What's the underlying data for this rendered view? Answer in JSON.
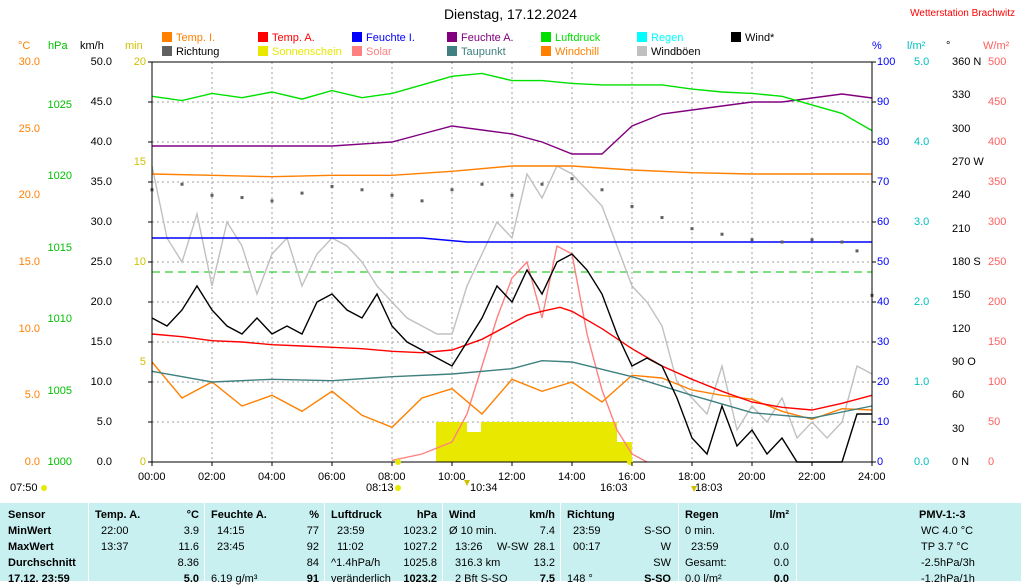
{
  "title": "Dienstag, 17.12.2024",
  "station": "Wetterstation Brachwitz",
  "legend": [
    {
      "label": "Temp. I.",
      "color": "#ff8000"
    },
    {
      "label": "Temp. A.",
      "color": "#ff0000"
    },
    {
      "label": "Feuchte I.",
      "color": "#0000ff"
    },
    {
      "label": "Feuchte A.",
      "color": "#800080"
    },
    {
      "label": "Luftdruck",
      "color": "#00e000"
    },
    {
      "label": "Regen",
      "color": "#00ffff"
    },
    {
      "label": "Wind*",
      "color": "#000000"
    },
    {
      "label": "Richtung",
      "color": "#606060"
    },
    {
      "label": "Sonnenschein",
      "color": "#e8e800"
    },
    {
      "label": "Solar",
      "color": "#ff8080"
    },
    {
      "label": "Taupunkt",
      "color": "#408080"
    },
    {
      "label": "Windchill",
      "color": "#ff8000"
    },
    {
      "label": "Windböen",
      "color": "#c0c0c0"
    }
  ],
  "axes_titles": {
    "temp": "°C",
    "press": "hPa",
    "wind": "km/h",
    "sun": "min",
    "hum": "%",
    "rain": "l/m²",
    "dir": "°",
    "solar": "W/m²"
  },
  "axes": {
    "temp": [
      "0.0",
      "5.0",
      "10.0",
      "15.0",
      "20.0",
      "25.0",
      "30.0"
    ],
    "press": [
      "1000",
      "1005",
      "1010",
      "1015",
      "1020",
      "1025"
    ],
    "wind": [
      "0.0",
      "5.0",
      "10.0",
      "15.0",
      "20.0",
      "25.0",
      "30.0",
      "35.0",
      "40.0",
      "45.0",
      "50.0"
    ],
    "sun": [
      "0",
      "5",
      "10",
      "15",
      "20"
    ],
    "hum": [
      "0",
      "10",
      "20",
      "30",
      "40",
      "50",
      "60",
      "70",
      "80",
      "90",
      "100"
    ],
    "rain": [
      "0.0",
      "1.0",
      "2.0",
      "3.0",
      "4.0",
      "5.0"
    ],
    "dir": [
      "0 N",
      "30",
      "60",
      "90 O",
      "120",
      "150",
      "180 S",
      "210",
      "240",
      "270 W",
      "300",
      "330",
      "360 N"
    ],
    "solar": [
      "0",
      "50",
      "100",
      "150",
      "200",
      "250",
      "300",
      "350",
      "400",
      "450",
      "500"
    ]
  },
  "x_ticks": [
    "00:00",
    "02:00",
    "04:00",
    "06:00",
    "08:00",
    "10:00",
    "12:00",
    "14:00",
    "16:00",
    "18:00",
    "20:00",
    "22:00",
    "24:00"
  ],
  "annotations": {
    "sunrise_left": "07:50",
    "sunrise": "08:13",
    "solar_max": "10:34",
    "sunset": "16:03",
    "dusk": "18:03"
  },
  "chart_data": {
    "type": "line",
    "x_unit": "hours",
    "x_range": [
      0,
      24
    ],
    "y_axes": {
      "temperature_C": [
        0,
        30
      ],
      "pressure_hPa": [
        1000,
        1028
      ],
      "wind_kmh": [
        0,
        50
      ],
      "sunshine_min": [
        0,
        20
      ],
      "humidity_pct": [
        0,
        100
      ],
      "rain_lm2": [
        0,
        5
      ],
      "direction_deg": [
        0,
        360
      ],
      "solar_wm2": [
        0,
        500
      ]
    },
    "series": [
      {
        "name": "Temp. I.",
        "axis": "temperature_C",
        "x": [
          0,
          2,
          4,
          6,
          8,
          10,
          12,
          14,
          16,
          18,
          20,
          22,
          24
        ],
        "values": [
          21.6,
          21.5,
          21.4,
          21.5,
          21.5,
          21.8,
          22.2,
          22.2,
          21.9,
          21.7,
          21.6,
          21.6,
          21.6
        ]
      },
      {
        "name": "Temp. A.",
        "axis": "temperature_C",
        "x": [
          0,
          1,
          2,
          3,
          4,
          5,
          6,
          7,
          8,
          9,
          10,
          11,
          12,
          12.5,
          13,
          13.6,
          14,
          15,
          16,
          17,
          18,
          19,
          20,
          21,
          22,
          23,
          24
        ],
        "values": [
          9.6,
          9.4,
          9.1,
          9.0,
          8.8,
          8.7,
          8.6,
          8.5,
          8.3,
          8.2,
          8.4,
          9.2,
          10.4,
          11.0,
          11.3,
          11.6,
          11.3,
          10.0,
          8.5,
          7.2,
          6.2,
          5.3,
          4.5,
          4.1,
          3.9,
          4.4,
          5.0
        ]
      },
      {
        "name": "Feuchte I.",
        "axis": "humidity_pct",
        "x": [
          0,
          3,
          6,
          9,
          10.5,
          11,
          14,
          16.5,
          18,
          21,
          24
        ],
        "values": [
          56,
          56,
          56,
          56,
          55,
          55,
          55,
          55,
          55,
          55,
          55
        ]
      },
      {
        "name": "Feuchte A.",
        "axis": "humidity_pct",
        "x": [
          0,
          2,
          4,
          6,
          8,
          9,
          10,
          11,
          12,
          13,
          14,
          15,
          16,
          17,
          18,
          19,
          20,
          21,
          22,
          23,
          24
        ],
        "values": [
          79,
          79,
          79,
          79,
          80,
          82,
          84,
          83,
          82,
          80,
          77,
          77,
          84,
          87,
          88,
          89,
          90,
          90,
          91,
          92,
          91
        ]
      },
      {
        "name": "Luftdruck",
        "axis": "pressure_hPa",
        "x": [
          0,
          1,
          2,
          3,
          4,
          5,
          6,
          7,
          8,
          9,
          10,
          11,
          12,
          13,
          14,
          15,
          16,
          17,
          18,
          19,
          20,
          21,
          22,
          23,
          24
        ],
        "values": [
          1025.6,
          1025.3,
          1025.8,
          1025.5,
          1025.9,
          1025.4,
          1026.0,
          1025.5,
          1025.8,
          1026.4,
          1027.0,
          1027.2,
          1026.7,
          1026.7,
          1026.5,
          1026.4,
          1026.4,
          1026.4,
          1026.1,
          1025.9,
          1025.8,
          1025.6,
          1025.0,
          1024.4,
          1023.2
        ]
      },
      {
        "name": "Taupunkt",
        "axis": "temperature_C",
        "x": [
          0,
          2,
          4,
          6,
          8,
          10,
          12,
          13,
          14,
          16,
          18,
          20,
          22,
          24
        ],
        "values": [
          6.8,
          6.0,
          6.2,
          6.1,
          6.4,
          6.6,
          7.0,
          7.6,
          7.5,
          6.4,
          5.0,
          3.7,
          3.3,
          4.2
        ]
      },
      {
        "name": "Windchill",
        "axis": "temperature_C",
        "x": [
          0,
          1,
          2,
          3,
          4,
          5,
          6,
          7,
          8,
          9,
          10,
          11,
          12,
          13,
          14,
          15,
          16,
          17,
          18,
          19,
          20,
          21,
          22,
          23,
          24
        ],
        "values": [
          7.5,
          4.8,
          6.0,
          4.2,
          5.0,
          3.8,
          5.3,
          3.5,
          2.6,
          4.8,
          5.5,
          3.6,
          6.2,
          5.3,
          6.0,
          4.5,
          6.5,
          6.3,
          5.4,
          5.0,
          4.7,
          3.8,
          3.2,
          4.0,
          3.9
        ]
      },
      {
        "name": "Wind*",
        "axis": "wind_kmh",
        "x": [
          0,
          0.5,
          1,
          1.5,
          2,
          2.5,
          3,
          3.5,
          4,
          4.5,
          5,
          5.5,
          6,
          6.5,
          7,
          7.5,
          8,
          8.5,
          9,
          9.5,
          10,
          10.5,
          11,
          11.5,
          12,
          12.5,
          13,
          13.5,
          14,
          14.5,
          15,
          15.5,
          16,
          16.5,
          17,
          17.5,
          18,
          18.5,
          19,
          19.5,
          20,
          20.5,
          21,
          21.5,
          22,
          22.5,
          23,
          23.5,
          24
        ],
        "values": [
          18,
          17,
          19,
          22,
          19,
          17,
          16,
          18,
          16,
          17,
          16,
          20,
          21,
          19,
          18,
          21,
          17,
          15,
          14,
          13,
          12,
          15,
          18,
          22,
          20,
          24,
          21,
          25,
          26,
          24,
          21,
          16,
          12,
          13,
          12,
          8,
          3,
          1,
          7,
          2,
          4,
          1,
          3,
          0,
          0,
          0,
          0,
          6,
          6
        ]
      },
      {
        "name": "Windböen",
        "axis": "wind_kmh",
        "x": [
          0,
          0.5,
          1,
          1.5,
          2,
          2.5,
          3,
          3.5,
          4,
          4.5,
          5,
          5.5,
          6,
          6.5,
          7,
          7.5,
          8,
          8.5,
          9,
          9.5,
          10,
          10.5,
          11,
          11.5,
          12,
          12.5,
          13,
          13.5,
          14,
          14.5,
          15,
          15.5,
          16,
          16.5,
          17,
          17.5,
          18,
          18.5,
          19,
          19.5,
          20,
          20.5,
          21,
          21.5,
          22,
          22.5,
          23,
          23.5,
          24
        ],
        "values": [
          37,
          28,
          25,
          31,
          22,
          30,
          27,
          21,
          26,
          28,
          22,
          26,
          28,
          27,
          25,
          22,
          20,
          18,
          17,
          16,
          16,
          22,
          26,
          30,
          28,
          36,
          33,
          37,
          36,
          34,
          32,
          27,
          22,
          20,
          17,
          10,
          8,
          6,
          12,
          4,
          7,
          5,
          8,
          3,
          5,
          3,
          5,
          12,
          11
        ]
      },
      {
        "name": "Richtung",
        "axis": "direction_deg",
        "x": [
          0,
          1,
          2,
          3,
          4,
          5,
          6,
          7,
          8,
          9,
          10,
          11,
          12,
          13,
          14,
          15,
          16,
          17,
          18,
          19,
          20,
          21,
          22,
          23,
          23.5,
          24
        ],
        "values": [
          245,
          250,
          240,
          238,
          235,
          242,
          248,
          245,
          240,
          235,
          245,
          250,
          240,
          250,
          255,
          245,
          230,
          220,
          210,
          205,
          200,
          198,
          200,
          198,
          190,
          150
        ]
      },
      {
        "name": "Solar",
        "axis": "solar_wm2",
        "x": [
          8,
          9,
          10,
          10.5,
          11,
          11.5,
          12,
          12.5,
          13,
          13.5,
          14,
          14.5,
          15,
          15.5,
          16,
          16.5
        ],
        "values": [
          2,
          10,
          25,
          60,
          120,
          180,
          230,
          250,
          180,
          270,
          260,
          160,
          90,
          40,
          10,
          0
        ]
      },
      {
        "name": "Sonnenschein",
        "axis": "sunshine_min",
        "x": [
          9.5,
          10,
          10.5,
          11,
          11.5,
          12,
          12.5,
          13,
          13.5,
          14,
          14.5,
          15,
          15.5
        ],
        "values": [
          2,
          2,
          1.5,
          2,
          2,
          2,
          2,
          2,
          2,
          2,
          2,
          2,
          1
        ]
      }
    ],
    "reference_lines": [
      {
        "axis": "humidity_pct",
        "value": 47.5,
        "color": "#00c000",
        "style": "dashed"
      }
    ]
  },
  "stats": {
    "row_labels": [
      "Sensor",
      "MinWert",
      "MaxWert",
      "Durchschnitt",
      "17.12. 23:59"
    ],
    "temp": {
      "header": "Temp. A.",
      "unit": "°C",
      "rows": [
        [
          "22:00",
          "3.9"
        ],
        [
          "13:37",
          "11.6"
        ],
        [
          "",
          "8.36"
        ],
        [
          "",
          "5.0"
        ]
      ]
    },
    "hum": {
      "header": "Feuchte A.",
      "unit": "%",
      "rows": [
        [
          "14:15",
          "77"
        ],
        [
          "23:45",
          "92"
        ],
        [
          "",
          "84"
        ],
        [
          "6.19 g/m³",
          "91"
        ]
      ]
    },
    "press": {
      "header": "Luftdruck",
      "unit": "hPa",
      "rows": [
        [
          "23:59",
          "1023.2"
        ],
        [
          "11:02",
          "1027.2"
        ],
        [
          "^1.4hPa/h",
          "1025.8"
        ],
        [
          "veränderlich",
          "1023.2"
        ]
      ]
    },
    "wind": {
      "header": "Wind",
      "unit": "km/h",
      "rows": [
        [
          "Ø 10 min.",
          "",
          "7.4"
        ],
        [
          "13:26",
          "W-SW",
          "28.1"
        ],
        [
          "316.3 km",
          "",
          "13.2"
        ],
        [
          "2 Bft S-SO",
          "",
          "7.5"
        ]
      ]
    },
    "dir": {
      "header": "Richtung",
      "rows": [
        [
          "23:59",
          "S-SO"
        ],
        [
          "00:17",
          "W"
        ],
        [
          "",
          "SW"
        ],
        [
          "148 °",
          "S-SO"
        ]
      ]
    },
    "rain": {
      "header": "Regen",
      "unit": "l/m²",
      "rows": [
        [
          "0 min.",
          ""
        ],
        [
          "23:59",
          "0.0"
        ],
        [
          "Gesamt:",
          "0.0"
        ],
        [
          "0.0 l/m²",
          "0.0"
        ]
      ]
    },
    "pmv": {
      "header": "PMV-1:-3",
      "rows": [
        "WC 4.0 °C",
        "TP 3.7 °C",
        "-2.5hPa/3h",
        "-1.2hPa/1h"
      ]
    }
  }
}
